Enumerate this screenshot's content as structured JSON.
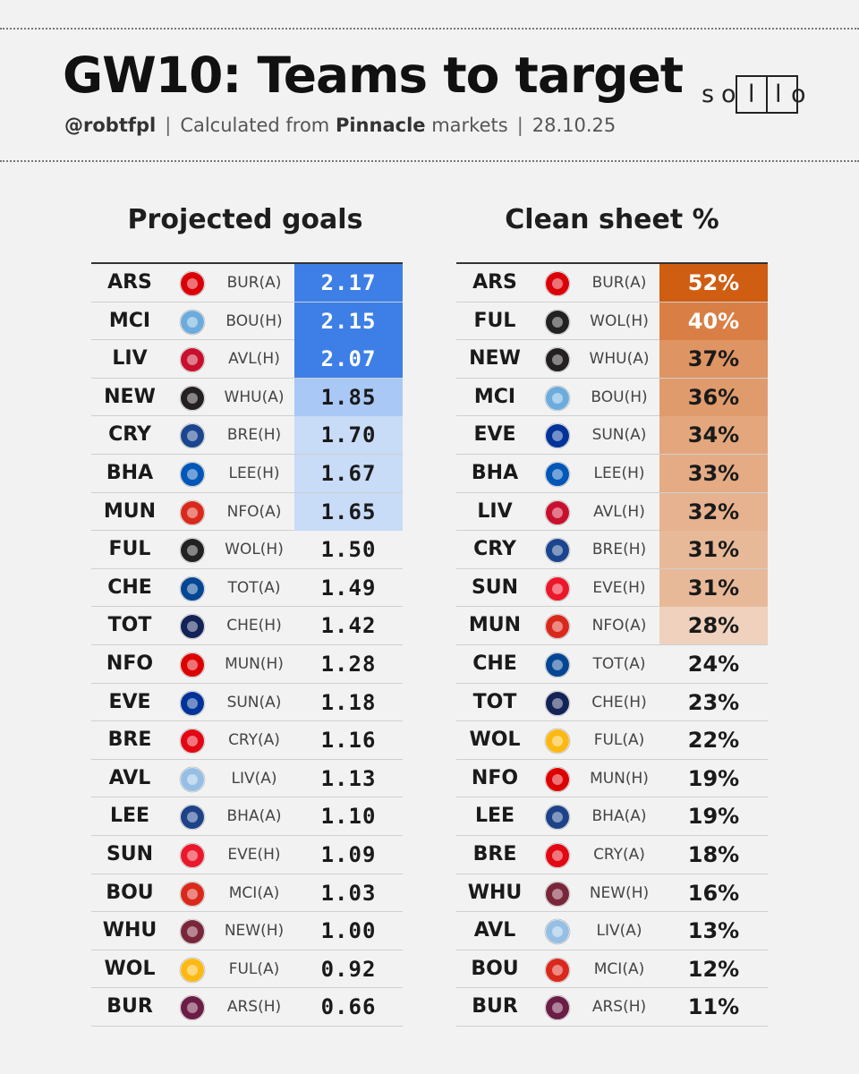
{
  "header": {
    "title": "GW10: Teams to target",
    "handle": "@robtfpl",
    "calc_prefix": "Calculated from",
    "calc_source": "Pinnacle",
    "calc_suffix": "markets",
    "date": "28.10.25",
    "separator": "|"
  },
  "logo": {
    "text": "solio",
    "s": "s",
    "o1": "o",
    "l1": "l",
    "l2": "l",
    "o2": "o"
  },
  "colors": {
    "goals_high": "#3d7fe6",
    "goals_mid": "#a9c8f5",
    "goals_low": "#c8dbf7",
    "cs_scale_base": "#cf5d12"
  },
  "goals": {
    "title": "Projected goals",
    "rows": [
      {
        "team": "ARS",
        "fixture": "BUR(A)",
        "value": "2.17",
        "level": 1.0,
        "badge_color": "#db0007",
        "badge_icon": "arsenal-badge-icon"
      },
      {
        "team": "MCI",
        "fixture": "BOU(H)",
        "value": "2.15",
        "level": 0.98,
        "badge_color": "#6cabdd",
        "badge_icon": "man-city-badge-icon"
      },
      {
        "team": "LIV",
        "fixture": "AVL(H)",
        "value": "2.07",
        "level": 0.92,
        "badge_color": "#c8102e",
        "badge_icon": "liverpool-badge-icon"
      },
      {
        "team": "NEW",
        "fixture": "WHU(A)",
        "value": "1.85",
        "level": 0.55,
        "badge_color": "#241f20",
        "badge_icon": "newcastle-badge-icon"
      },
      {
        "team": "CRY",
        "fixture": "BRE(H)",
        "value": "1.70",
        "level": 0.3,
        "badge_color": "#1b458f",
        "badge_icon": "crystal-palace-badge-icon"
      },
      {
        "team": "BHA",
        "fixture": "LEE(H)",
        "value": "1.67",
        "level": 0.27,
        "badge_color": "#0057b8",
        "badge_icon": "brighton-badge-icon"
      },
      {
        "team": "MUN",
        "fixture": "NFO(A)",
        "value": "1.65",
        "level": 0.25,
        "badge_color": "#da291c",
        "badge_icon": "man-utd-badge-icon"
      },
      {
        "team": "FUL",
        "fixture": "WOL(H)",
        "value": "1.50",
        "level": 0,
        "badge_color": "#222222",
        "badge_icon": "fulham-badge-icon"
      },
      {
        "team": "CHE",
        "fixture": "TOT(A)",
        "value": "1.49",
        "level": 0,
        "badge_color": "#034694",
        "badge_icon": "chelsea-badge-icon"
      },
      {
        "team": "TOT",
        "fixture": "CHE(H)",
        "value": "1.42",
        "level": 0,
        "badge_color": "#132257",
        "badge_icon": "tottenham-badge-icon"
      },
      {
        "team": "NFO",
        "fixture": "MUN(H)",
        "value": "1.28",
        "level": 0,
        "badge_color": "#dd0000",
        "badge_icon": "forest-badge-icon"
      },
      {
        "team": "EVE",
        "fixture": "SUN(A)",
        "value": "1.18",
        "level": 0,
        "badge_color": "#003399",
        "badge_icon": "everton-badge-icon"
      },
      {
        "team": "BRE",
        "fixture": "CRY(A)",
        "value": "1.16",
        "level": 0,
        "badge_color": "#e30613",
        "badge_icon": "brentford-badge-icon"
      },
      {
        "team": "AVL",
        "fixture": "LIV(A)",
        "value": "1.13",
        "level": 0,
        "badge_color": "#95bfe5",
        "badge_icon": "aston-villa-badge-icon"
      },
      {
        "team": "LEE",
        "fixture": "BHA(A)",
        "value": "1.10",
        "level": 0,
        "badge_color": "#1d428a",
        "badge_icon": "leeds-badge-icon"
      },
      {
        "team": "SUN",
        "fixture": "EVE(H)",
        "value": "1.09",
        "level": 0,
        "badge_color": "#eb172b",
        "badge_icon": "sunderland-badge-icon"
      },
      {
        "team": "BOU",
        "fixture": "MCI(A)",
        "value": "1.03",
        "level": 0,
        "badge_color": "#da291c",
        "badge_icon": "bournemouth-badge-icon"
      },
      {
        "team": "WHU",
        "fixture": "NEW(H)",
        "value": "1.00",
        "level": 0,
        "badge_color": "#7a263a",
        "badge_icon": "west-ham-badge-icon"
      },
      {
        "team": "WOL",
        "fixture": "FUL(A)",
        "value": "0.92",
        "level": 0,
        "badge_color": "#fdb913",
        "badge_icon": "wolves-badge-icon"
      },
      {
        "team": "BUR",
        "fixture": "ARS(H)",
        "value": "0.66",
        "level": 0,
        "badge_color": "#6c1d45",
        "badge_icon": "burnley-badge-icon"
      }
    ]
  },
  "cleansheet": {
    "title": "Clean sheet %",
    "rows": [
      {
        "team": "ARS",
        "fixture": "BUR(A)",
        "value": "52%",
        "level": 1.0,
        "badge_color": "#db0007",
        "badge_icon": "arsenal-badge-icon"
      },
      {
        "team": "FUL",
        "fixture": "WOL(H)",
        "value": "40%",
        "level": 0.75,
        "badge_color": "#222222",
        "badge_icon": "fulham-badge-icon"
      },
      {
        "team": "NEW",
        "fixture": "WHU(A)",
        "value": "37%",
        "level": 0.6,
        "badge_color": "#241f20",
        "badge_icon": "newcastle-badge-icon"
      },
      {
        "team": "MCI",
        "fixture": "BOU(H)",
        "value": "36%",
        "level": 0.55,
        "badge_color": "#6cabdd",
        "badge_icon": "man-city-badge-icon"
      },
      {
        "team": "EVE",
        "fixture": "SUN(A)",
        "value": "34%",
        "level": 0.47,
        "badge_color": "#003399",
        "badge_icon": "everton-badge-icon"
      },
      {
        "team": "BHA",
        "fixture": "LEE(H)",
        "value": "33%",
        "level": 0.43,
        "badge_color": "#0057b8",
        "badge_icon": "brighton-badge-icon"
      },
      {
        "team": "LIV",
        "fixture": "AVL(H)",
        "value": "32%",
        "level": 0.38,
        "badge_color": "#c8102e",
        "badge_icon": "liverpool-badge-icon"
      },
      {
        "team": "CRY",
        "fixture": "BRE(H)",
        "value": "31%",
        "level": 0.33,
        "badge_color": "#1b458f",
        "badge_icon": "crystal-palace-badge-icon"
      },
      {
        "team": "SUN",
        "fixture": "EVE(H)",
        "value": "31%",
        "level": 0.33,
        "badge_color": "#eb172b",
        "badge_icon": "sunderland-badge-icon"
      },
      {
        "team": "MUN",
        "fixture": "NFO(A)",
        "value": "28%",
        "level": 0.15,
        "badge_color": "#da291c",
        "badge_icon": "man-utd-badge-icon"
      },
      {
        "team": "CHE",
        "fixture": "TOT(A)",
        "value": "24%",
        "level": 0,
        "badge_color": "#034694",
        "badge_icon": "chelsea-badge-icon"
      },
      {
        "team": "TOT",
        "fixture": "CHE(H)",
        "value": "23%",
        "level": 0,
        "badge_color": "#132257",
        "badge_icon": "tottenham-badge-icon"
      },
      {
        "team": "WOL",
        "fixture": "FUL(A)",
        "value": "22%",
        "level": 0,
        "badge_color": "#fdb913",
        "badge_icon": "wolves-badge-icon"
      },
      {
        "team": "NFO",
        "fixture": "MUN(H)",
        "value": "19%",
        "level": 0,
        "badge_color": "#dd0000",
        "badge_icon": "forest-badge-icon"
      },
      {
        "team": "LEE",
        "fixture": "BHA(A)",
        "value": "19%",
        "level": 0,
        "badge_color": "#1d428a",
        "badge_icon": "leeds-badge-icon"
      },
      {
        "team": "BRE",
        "fixture": "CRY(A)",
        "value": "18%",
        "level": 0,
        "badge_color": "#e30613",
        "badge_icon": "brentford-badge-icon"
      },
      {
        "team": "WHU",
        "fixture": "NEW(H)",
        "value": "16%",
        "level": 0,
        "badge_color": "#7a263a",
        "badge_icon": "west-ham-badge-icon"
      },
      {
        "team": "AVL",
        "fixture": "LIV(A)",
        "value": "13%",
        "level": 0,
        "badge_color": "#95bfe5",
        "badge_icon": "aston-villa-badge-icon"
      },
      {
        "team": "BOU",
        "fixture": "MCI(A)",
        "value": "12%",
        "level": 0,
        "badge_color": "#da291c",
        "badge_icon": "bournemouth-badge-icon"
      },
      {
        "team": "BUR",
        "fixture": "ARS(H)",
        "value": "11%",
        "level": 0,
        "badge_color": "#6c1d45",
        "badge_icon": "burnley-badge-icon"
      }
    ]
  }
}
